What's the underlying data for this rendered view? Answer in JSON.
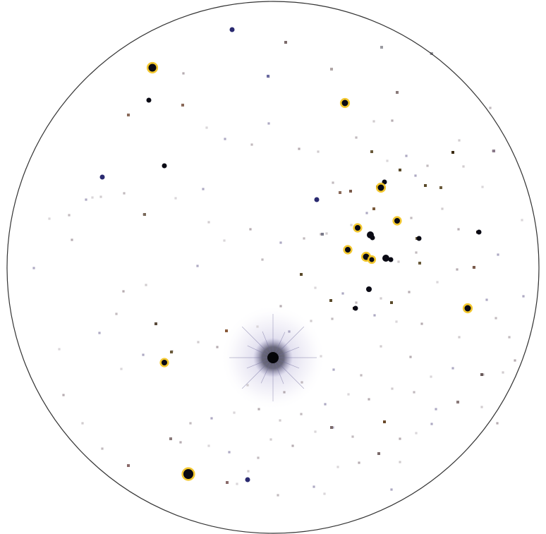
{
  "image": {
    "subject": "star-field",
    "view": "telescope-eyepiece",
    "style": "inverted-negative",
    "colors": {
      "background": "#ffffff",
      "field_outline": "#333333",
      "bright_star_core": "#0a0a14",
      "warm_halo": "#f2c21a",
      "cool_star": "#2a2a70",
      "faint_star": "#b7aeb3",
      "glow": "#b8b4d6"
    }
  }
}
